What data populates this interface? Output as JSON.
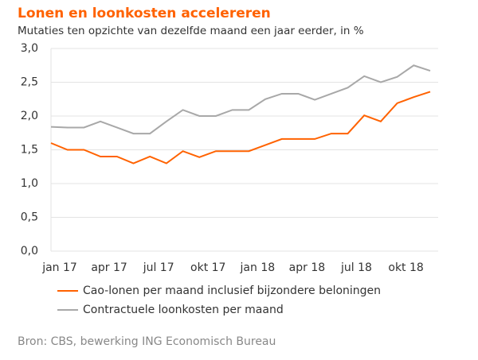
{
  "chart_data": {
    "type": "line",
    "title": "Lonen en loonkosten accelereren",
    "subtitle": "Mutaties ten opzichte van dezelfde maand een jaar eerder, in %",
    "source": "Bron: CBS, bewerking ING Economisch Bureau",
    "categories": [
      "jan 17",
      null,
      null,
      "apr 17",
      null,
      null,
      "jul 17",
      null,
      null,
      "okt 17",
      null,
      null,
      "jan 18",
      null,
      null,
      "apr 18",
      null,
      null,
      "jul 18",
      null,
      null,
      "okt 18",
      null,
      null
    ],
    "series": [
      {
        "name": "Cao-lonen per maand inclusief bijzondere beloningen",
        "color": "#ff6200",
        "values": [
          1.6,
          1.5,
          1.5,
          1.4,
          1.4,
          1.3,
          1.4,
          1.3,
          1.48,
          1.39,
          1.48,
          1.48,
          1.48,
          1.57,
          1.66,
          1.66,
          1.66,
          1.74,
          1.74,
          2.01,
          1.92,
          2.19,
          2.28,
          2.36
        ]
      },
      {
        "name": "Contractuele loonkosten per maand",
        "color": "#a8a8a8",
        "values": [
          1.84,
          1.83,
          1.83,
          1.92,
          1.83,
          1.74,
          1.74,
          1.92,
          2.09,
          2.0,
          2.0,
          2.09,
          2.09,
          2.25,
          2.33,
          2.33,
          2.24,
          2.33,
          2.42,
          2.59,
          2.5,
          2.58,
          2.75,
          2.67
        ]
      }
    ],
    "ylim": [
      0,
      3
    ],
    "yticks": [
      {
        "value": 0,
        "label": "0,0"
      },
      {
        "value": 0.5,
        "label": "0,5"
      },
      {
        "value": 1,
        "label": "1,0"
      },
      {
        "value": 1.5,
        "label": "1,5"
      },
      {
        "value": 2,
        "label": "2,0"
      },
      {
        "value": 2.5,
        "label": "2,5"
      },
      {
        "value": 3,
        "label": "3,0"
      }
    ],
    "grid": true
  }
}
